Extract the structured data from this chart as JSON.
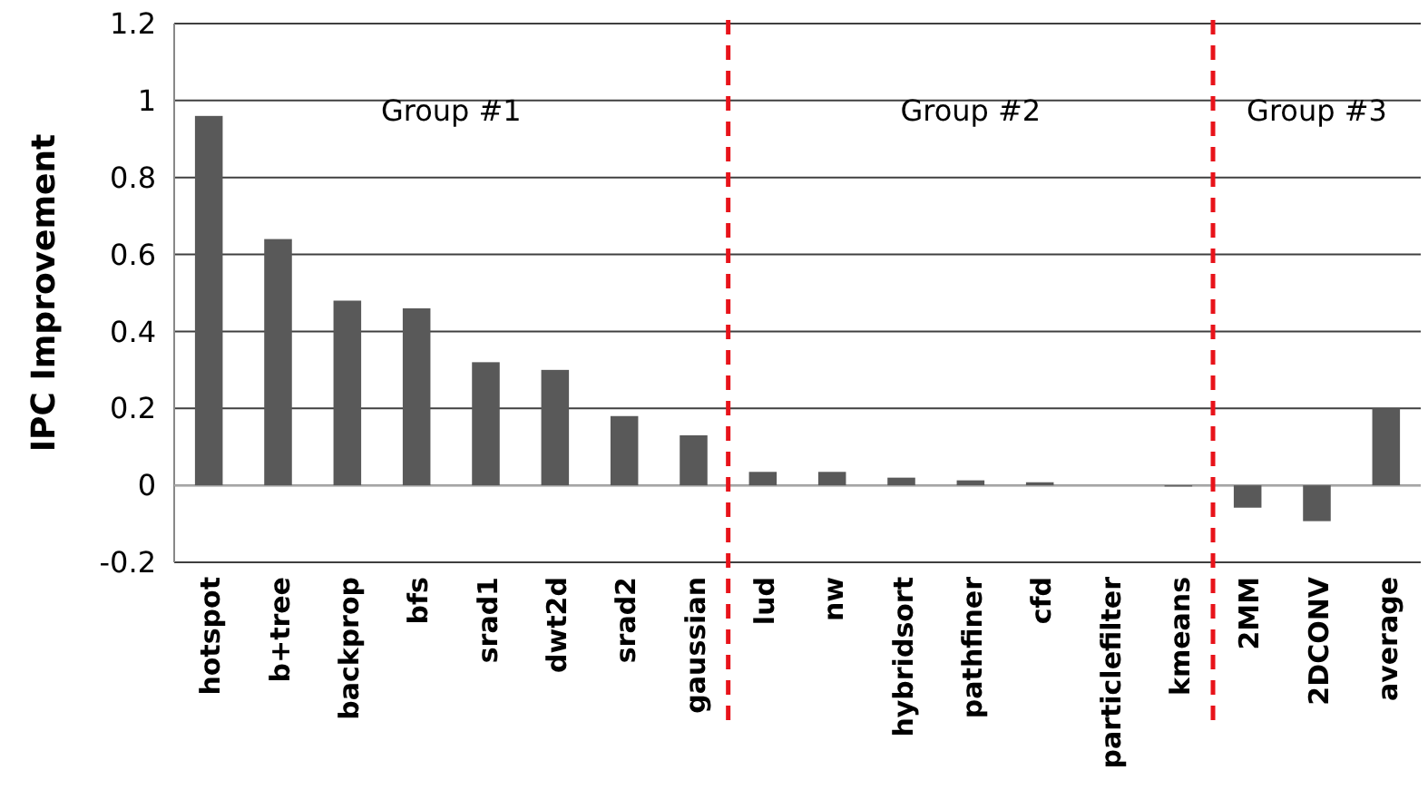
{
  "chart_data": {
    "type": "bar",
    "ylabel": "IPC Improvement",
    "categories": [
      "hotspot",
      "b+tree",
      "backprop",
      "bfs",
      "srad1",
      "dwt2d",
      "srad2",
      "gaussian",
      "lud",
      "nw",
      "hybridsort",
      "pathfiner",
      "cfd",
      "particlefilter",
      "kmeans",
      "2MM",
      "2DCONV",
      "average"
    ],
    "values": [
      0.96,
      0.64,
      0.48,
      0.46,
      0.32,
      0.3,
      0.18,
      0.13,
      0.035,
      0.035,
      0.02,
      0.013,
      0.008,
      0,
      -0.003,
      -0.058,
      -0.093,
      0.2
    ],
    "color": "#595959",
    "ylim": [
      -0.2,
      1.2
    ],
    "yticks": [
      -0.2,
      0,
      0.2,
      0.4,
      0.6,
      0.8,
      1,
      1.2
    ],
    "grid": "y",
    "annotations": [
      "Group #1",
      "Group #2",
      "Group #3"
    ]
  }
}
